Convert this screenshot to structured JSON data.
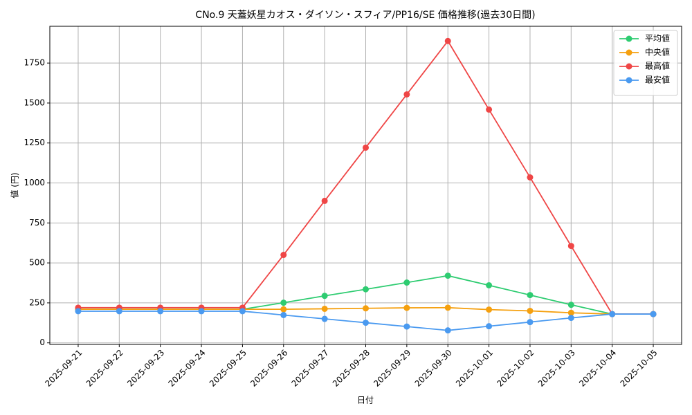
{
  "chart_data": {
    "type": "line",
    "title": "CNo.9 天蓋妖星カオス・ダイソン・スフィア/PP16/SE 価格推移(過去30日間)",
    "xlabel": "日付",
    "ylabel": "値 (円)",
    "categories": [
      "2025-09-21",
      "2025-09-22",
      "2025-09-23",
      "2025-09-24",
      "2025-09-25",
      "2025-09-26",
      "2025-09-27",
      "2025-09-28",
      "2025-09-29",
      "2025-09-30",
      "2025-10-01",
      "2025-10-02",
      "2025-10-03",
      "2025-10-04",
      "2025-10-05"
    ],
    "series": [
      {
        "name": "平均値",
        "color": "#2ecc71",
        "values": [
          210,
          210,
          210,
          210,
          210,
          251,
          294,
          335,
          377,
          420,
          360,
          299,
          238,
          180,
          180
        ]
      },
      {
        "name": "中央値",
        "color": "#f5a00f",
        "values": [
          210,
          210,
          210,
          210,
          210,
          210,
          213,
          216,
          219,
          220,
          208,
          200,
          188,
          180,
          180
        ]
      },
      {
        "name": "最高値",
        "color": "#ef4646",
        "values": [
          220,
          220,
          220,
          220,
          220,
          550,
          888,
          1221,
          1554,
          1888,
          1459,
          1035,
          606,
          180,
          180
        ]
      },
      {
        "name": "最安値",
        "color": "#4a9af0",
        "values": [
          198,
          198,
          198,
          198,
          198,
          174,
          150,
          126,
          102,
          78,
          104,
          130,
          156,
          180,
          180
        ]
      }
    ],
    "ylim": [
      -10,
      1980
    ],
    "yticks": [
      0,
      250,
      500,
      750,
      1000,
      1250,
      1500,
      1750
    ],
    "grid": true,
    "legend": "upper right"
  }
}
